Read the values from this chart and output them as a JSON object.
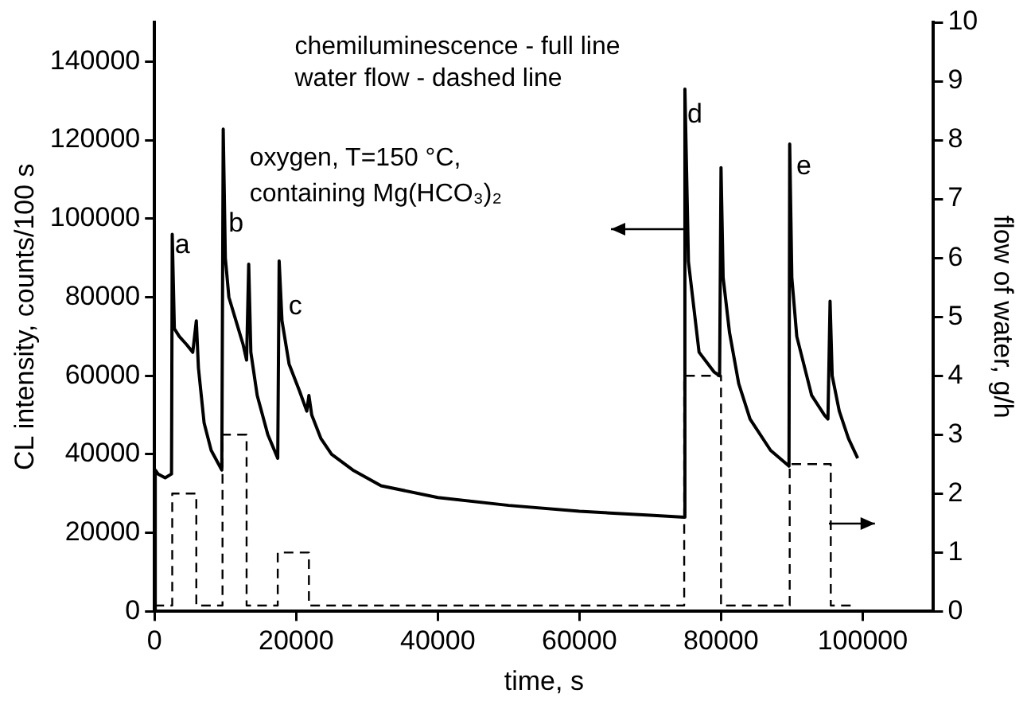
{
  "chart_data": {
    "type": "line",
    "xlabel": "time, s",
    "ylabel": "CL intensity, counts/100 s",
    "y2label": "flow of water, g/h",
    "xlim": [
      0,
      110000
    ],
    "xticks": [
      0,
      20000,
      40000,
      60000,
      80000,
      100000
    ],
    "ylim": [
      0,
      150000
    ],
    "yticks": [
      0,
      20000,
      40000,
      60000,
      80000,
      100000,
      120000,
      140000
    ],
    "y2lim": [
      0,
      10
    ],
    "y2ticks": [
      0,
      1,
      2,
      3,
      4,
      5,
      6,
      7,
      8,
      9,
      10
    ],
    "grid": false,
    "legend": false,
    "marker": "none",
    "annotations": [
      "chemiluminescence - full line",
      "water flow - dashed line",
      "oxygen, T=150 °C,",
      "containing Mg(HCO₃)₂",
      "a",
      "b",
      "c",
      "d",
      "e"
    ],
    "series": [
      {
        "color": "#000000",
        "line_style": "solid",
        "x": [
          0,
          100,
          500,
          1500,
          2400,
          2500,
          2800,
          3500,
          4500,
          5400,
          5900,
          6200,
          7000,
          8000,
          9500,
          9700,
          10000,
          10500,
          11500,
          12500,
          13000,
          13300,
          13600,
          14500,
          16000,
          17400,
          17600,
          18000,
          19000,
          20500,
          21500,
          21800,
          22200,
          23500,
          25000,
          28000,
          32000,
          40000,
          50000,
          60000,
          70000,
          74800,
          74900,
          75400,
          76900,
          79000,
          79800,
          80000,
          80300,
          81200,
          82500,
          84100,
          87000,
          89600,
          89700,
          90000,
          90700,
          92800,
          94600,
          95100,
          95400,
          95700,
          96700,
          98000,
          99300
        ],
        "values": [
          0,
          36000,
          35000,
          34000,
          35000,
          96000,
          72000,
          70000,
          68000,
          66000,
          74000,
          62000,
          48000,
          41000,
          36000,
          122800,
          90000,
          80000,
          74000,
          68000,
          64000,
          88400,
          66000,
          55000,
          45000,
          39000,
          89200,
          74000,
          63000,
          56000,
          51000,
          55000,
          50000,
          44000,
          40000,
          36000,
          32000,
          29000,
          27000,
          25500,
          24500,
          24000,
          133000,
          89000,
          66000,
          61000,
          60000,
          113000,
          85000,
          71000,
          58000,
          49000,
          41000,
          37000,
          119000,
          85000,
          70000,
          55000,
          50000,
          49000,
          79000,
          60000,
          51000,
          44000,
          39000
        ]
      },
      {
        "axis": "y2",
        "color": "#000000",
        "line_style": "dashed",
        "x": [
          0,
          2500,
          2500,
          5900,
          5900,
          9600,
          9600,
          13000,
          13000,
          17400,
          17400,
          21800,
          21800,
          74800,
          74800,
          80000,
          80000,
          89700,
          89700,
          95500,
          95500,
          99000
        ],
        "values": [
          0.1,
          0.1,
          2,
          2,
          0.1,
          0.1,
          3,
          3,
          0.1,
          0.1,
          1,
          1,
          0.1,
          0.1,
          4,
          4,
          0.1,
          0.1,
          2.5,
          2.5,
          0.1,
          0.1
        ]
      }
    ]
  }
}
